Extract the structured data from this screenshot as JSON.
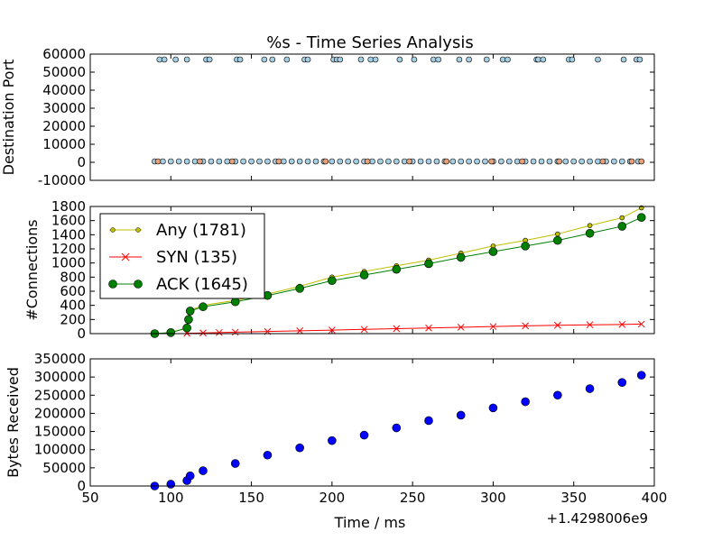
{
  "chart_data": {
    "title": "%s - Time Series Analysis",
    "xlabel": "Time / ms",
    "x_offset_label": "+1.4298006e9",
    "xlim": [
      50,
      400
    ],
    "xticks": [
      50,
      100,
      150,
      200,
      250,
      300,
      350,
      400
    ],
    "subplots": [
      {
        "type": "scatter",
        "ylabel": "Destination Port",
        "ylim": [
          -10000,
          60000
        ],
        "yticks": [
          -10000,
          0,
          10000,
          20000,
          30000,
          40000,
          50000,
          60000
        ],
        "series": [
          {
            "color": "#a6cee3",
            "values": [
              [
                93,
                57000
              ],
              [
                96,
                57000
              ],
              [
                103,
                57000
              ],
              [
                110,
                57000
              ],
              [
                122,
                57000
              ],
              [
                124,
                57000
              ],
              [
                141,
                57000
              ],
              [
                143,
                57000
              ],
              [
                158,
                57000
              ],
              [
                163,
                57000
              ],
              [
                172,
                57000
              ],
              [
                183,
                57000
              ],
              [
                185,
                57000
              ],
              [
                201,
                57000
              ],
              [
                203,
                57000
              ],
              [
                205,
                57000
              ],
              [
                218,
                57000
              ],
              [
                224,
                57000
              ],
              [
                227,
                57000
              ],
              [
                242,
                57000
              ],
              [
                251,
                57000
              ],
              [
                263,
                57000
              ],
              [
                266,
                57000
              ],
              [
                279,
                57000
              ],
              [
                285,
                57000
              ],
              [
                296,
                57000
              ],
              [
                306,
                57000
              ],
              [
                309,
                57000
              ],
              [
                327,
                57000
              ],
              [
                328,
                57000
              ],
              [
                331,
                57000
              ],
              [
                347,
                57000
              ],
              [
                349,
                57000
              ],
              [
                365,
                57000
              ],
              [
                381,
                57000
              ],
              [
                389,
                57000
              ],
              [
                391,
                57000
              ]
            ]
          },
          {
            "color": "#a6cee3",
            "values": [
              [
                90,
                500
              ],
              [
                95,
                500
              ],
              [
                100,
                500
              ],
              [
                105,
                500
              ],
              [
                110,
                500
              ],
              [
                115,
                500
              ],
              [
                120,
                500
              ],
              [
                125,
                500
              ],
              [
                130,
                500
              ],
              [
                135,
                500
              ],
              [
                140,
                500
              ],
              [
                145,
                500
              ],
              [
                150,
                500
              ],
              [
                155,
                500
              ],
              [
                160,
                500
              ],
              [
                165,
                500
              ],
              [
                170,
                500
              ],
              [
                175,
                500
              ],
              [
                180,
                500
              ],
              [
                185,
                500
              ],
              [
                190,
                500
              ],
              [
                195,
                500
              ],
              [
                200,
                500
              ],
              [
                205,
                500
              ],
              [
                210,
                500
              ],
              [
                215,
                500
              ],
              [
                220,
                500
              ],
              [
                225,
                500
              ],
              [
                230,
                500
              ],
              [
                235,
                500
              ],
              [
                240,
                500
              ],
              [
                245,
                500
              ],
              [
                250,
                500
              ],
              [
                255,
                500
              ],
              [
                260,
                500
              ],
              [
                265,
                500
              ],
              [
                270,
                500
              ],
              [
                275,
                500
              ],
              [
                280,
                500
              ],
              [
                285,
                500
              ],
              [
                290,
                500
              ],
              [
                295,
                500
              ],
              [
                300,
                500
              ],
              [
                305,
                500
              ],
              [
                310,
                500
              ],
              [
                315,
                500
              ],
              [
                320,
                500
              ],
              [
                325,
                500
              ],
              [
                330,
                500
              ],
              [
                335,
                500
              ],
              [
                340,
                500
              ],
              [
                345,
                500
              ],
              [
                350,
                500
              ],
              [
                355,
                500
              ],
              [
                360,
                500
              ],
              [
                365,
                500
              ],
              [
                370,
                500
              ],
              [
                375,
                500
              ],
              [
                380,
                500
              ],
              [
                385,
                500
              ],
              [
                390,
                500
              ]
            ]
          },
          {
            "color": "#e6a07a",
            "values": [
              [
                92,
                500
              ],
              [
                118,
                500
              ],
              [
                138,
                500
              ],
              [
                167,
                500
              ],
              [
                196,
                500
              ],
              [
                222,
                500
              ],
              [
                248,
                500
              ],
              [
                271,
                500
              ],
              [
                299,
                500
              ],
              [
                318,
                500
              ],
              [
                341,
                500
              ],
              [
                368,
                500
              ],
              [
                386,
                500
              ],
              [
                392,
                500
              ]
            ]
          }
        ]
      },
      {
        "type": "line",
        "ylabel": "#Connections",
        "ylim": [
          0,
          1800
        ],
        "yticks": [
          0,
          200,
          400,
          600,
          800,
          1000,
          1200,
          1400,
          1600,
          1800
        ],
        "legend": "upper-left",
        "series": [
          {
            "name": "Any (1781)",
            "color": "#bfbf00",
            "marker": "dot",
            "values": [
              [
                90,
                0
              ],
              [
                100,
                15
              ],
              [
                110,
                80
              ],
              [
                111,
                200
              ],
              [
                112,
                330
              ],
              [
                120,
                400
              ],
              [
                140,
                470
              ],
              [
                160,
                560
              ],
              [
                180,
                670
              ],
              [
                200,
                800
              ],
              [
                220,
                880
              ],
              [
                240,
                960
              ],
              [
                260,
                1040
              ],
              [
                280,
                1140
              ],
              [
                300,
                1240
              ],
              [
                320,
                1320
              ],
              [
                340,
                1410
              ],
              [
                360,
                1530
              ],
              [
                380,
                1640
              ],
              [
                392,
                1781
              ]
            ]
          },
          {
            "name": "SYN (135)",
            "color": "#ff0000",
            "marker": "x",
            "values": [
              [
                110,
                5
              ],
              [
                120,
                10
              ],
              [
                130,
                15
              ],
              [
                140,
                20
              ],
              [
                160,
                30
              ],
              [
                180,
                40
              ],
              [
                200,
                50
              ],
              [
                220,
                60
              ],
              [
                240,
                70
              ],
              [
                260,
                80
              ],
              [
                280,
                90
              ],
              [
                300,
                100
              ],
              [
                320,
                110
              ],
              [
                340,
                118
              ],
              [
                360,
                125
              ],
              [
                380,
                130
              ],
              [
                392,
                135
              ]
            ]
          },
          {
            "name": "ACK (1645)",
            "color": "#008000",
            "marker": "circle",
            "values": [
              [
                90,
                0
              ],
              [
                100,
                15
              ],
              [
                110,
                80
              ],
              [
                111,
                200
              ],
              [
                112,
                320
              ],
              [
                120,
                380
              ],
              [
                140,
                450
              ],
              [
                160,
                540
              ],
              [
                180,
                640
              ],
              [
                200,
                750
              ],
              [
                220,
                830
              ],
              [
                240,
                910
              ],
              [
                260,
                990
              ],
              [
                280,
                1080
              ],
              [
                300,
                1160
              ],
              [
                320,
                1240
              ],
              [
                340,
                1320
              ],
              [
                360,
                1420
              ],
              [
                380,
                1520
              ],
              [
                392,
                1645
              ]
            ]
          }
        ]
      },
      {
        "type": "scatter",
        "ylabel": "Bytes Received",
        "ylim": [
          0,
          350000
        ],
        "yticks": [
          0,
          50000,
          100000,
          150000,
          200000,
          250000,
          300000,
          350000
        ],
        "series": [
          {
            "color": "#0000ff",
            "values": [
              [
                90,
                0
              ],
              [
                100,
                5000
              ],
              [
                110,
                15000
              ],
              [
                112,
                28000
              ],
              [
                120,
                42000
              ],
              [
                140,
                62000
              ],
              [
                160,
                85000
              ],
              [
                180,
                105000
              ],
              [
                200,
                125000
              ],
              [
                220,
                140000
              ],
              [
                240,
                160000
              ],
              [
                260,
                180000
              ],
              [
                280,
                195000
              ],
              [
                300,
                215000
              ],
              [
                320,
                232000
              ],
              [
                340,
                250000
              ],
              [
                360,
                268000
              ],
              [
                380,
                285000
              ],
              [
                392,
                305000
              ]
            ]
          }
        ]
      }
    ]
  }
}
